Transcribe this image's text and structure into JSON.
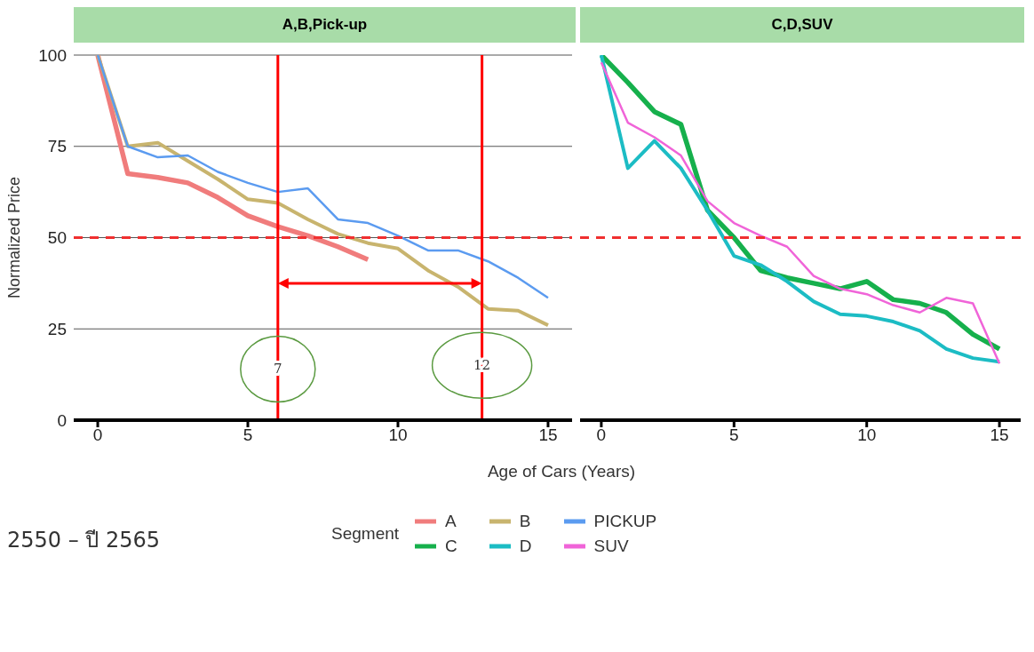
{
  "chart_data": [
    {
      "type": "line",
      "title": "A,B,Pick-up",
      "xlabel": "Age of Cars (Years)",
      "ylabel": "Normalized Price",
      "legend_title": "Segment",
      "legend": "bottom",
      "grid": "y",
      "marker": "none",
      "line_style": "solid",
      "x": [
        0,
        1,
        2,
        3,
        4,
        5,
        6,
        7,
        8,
        9,
        10,
        11,
        12,
        13,
        14,
        15
      ],
      "xlim": [
        -0.8,
        15.8
      ],
      "xticks": [
        0,
        5,
        10,
        15
      ],
      "ylim": [
        0,
        100
      ],
      "yticks": [
        0,
        25,
        50,
        75,
        100
      ],
      "series": [
        {
          "name": "A",
          "color": "#f07c7c",
          "values": [
            100,
            67.5,
            66.5,
            65,
            61,
            56,
            53,
            50.5,
            47.5,
            44,
            null,
            null,
            null,
            null,
            null,
            null
          ]
        },
        {
          "name": "B",
          "color": "#c8b46e",
          "values": [
            100,
            75,
            76,
            71,
            66,
            60.5,
            59.5,
            55,
            51,
            48.5,
            47,
            41,
            36.5,
            30.5,
            30,
            26
          ]
        },
        {
          "name": "PICKUP",
          "color": "#5b9bf0",
          "values": [
            100,
            75,
            72,
            72.5,
            68,
            65,
            62.5,
            63.5,
            55,
            54,
            50.5,
            46.5,
            46.5,
            43.5,
            39,
            33.5
          ]
        }
      ],
      "ref_lines": [
        {
          "axis": "y",
          "value": 50,
          "color": "#f03030",
          "line_style": "dashed"
        },
        {
          "axis": "x",
          "value": 6,
          "color": "#ff0000",
          "line_style": "solid"
        },
        {
          "axis": "x",
          "value": 12.8,
          "color": "#ff0000",
          "line_style": "solid"
        }
      ],
      "annotations": [
        {
          "text": "7",
          "x": 6,
          "y": 14
        },
        {
          "text": "12",
          "x": 12.8,
          "y": 15
        },
        "2550 – ปี 2565"
      ]
    },
    {
      "type": "line",
      "title": "C,D,SUV",
      "legend": "bottom",
      "grid": "y",
      "marker": "none",
      "line_style": "solid",
      "tick_labels": "x",
      "x": [
        0,
        1,
        2,
        3,
        4,
        5,
        6,
        7,
        8,
        9,
        10,
        11,
        12,
        13,
        14,
        15
      ],
      "xlim": [
        -0.8,
        15.8
      ],
      "xticks": [
        0,
        5,
        10,
        15
      ],
      "ylim": [
        0,
        100
      ],
      "yticks": [
        0,
        25,
        50,
        75,
        100
      ],
      "series": [
        {
          "name": "C",
          "color": "#16b04c",
          "values": [
            100,
            92.5,
            84.5,
            81,
            57.5,
            50,
            41,
            39,
            37.5,
            36,
            38,
            33,
            32,
            29.5,
            23.5,
            19.5
          ]
        },
        {
          "name": "D",
          "color": "#1cbcc4",
          "values": [
            100,
            69,
            76.5,
            69,
            57.5,
            45,
            42.5,
            38,
            32.5,
            29,
            28.5,
            27,
            24.5,
            19.5,
            17,
            16
          ]
        },
        {
          "name": "SUV",
          "color": "#f064d8",
          "values": [
            98,
            81.5,
            77.5,
            72.5,
            60,
            54,
            50.5,
            47.5,
            39.5,
            36,
            34.5,
            31.5,
            29.5,
            33.5,
            32,
            15.5
          ]
        }
      ],
      "ref_lines": [
        {
          "axis": "y",
          "value": 50,
          "color": "#f03030",
          "line_style": "dashed"
        }
      ]
    }
  ]
}
